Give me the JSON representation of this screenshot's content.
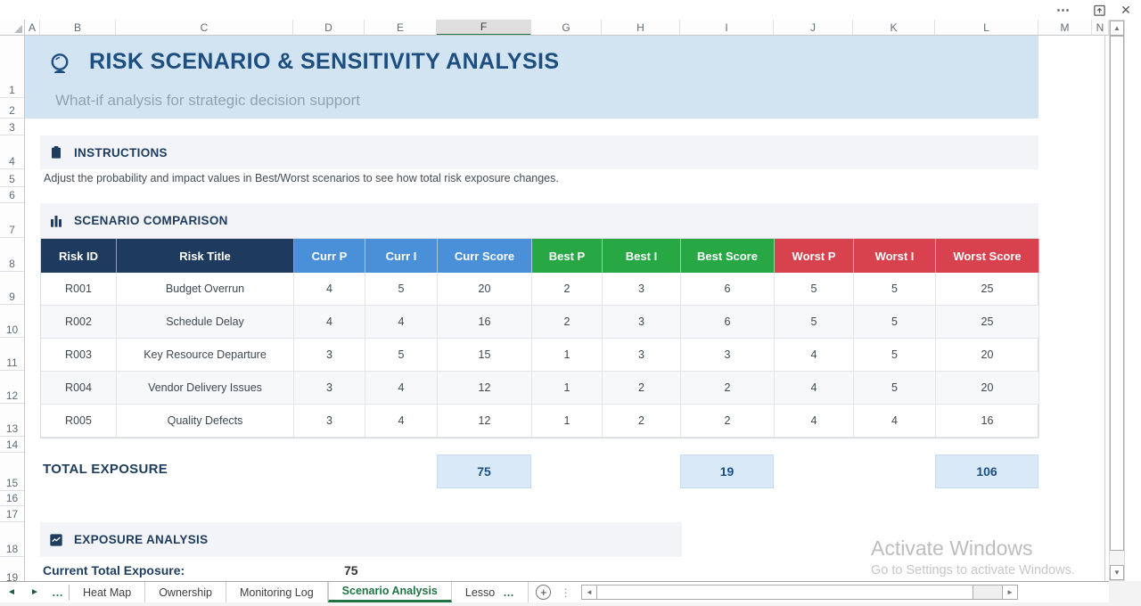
{
  "titlebar": {
    "more": "⋯",
    "close": "✕"
  },
  "grid": {
    "columns": [
      "A",
      "B",
      "C",
      "D",
      "E",
      "F",
      "G",
      "H",
      "I",
      "J",
      "K",
      "L",
      "M",
      "N"
    ],
    "selected_column": "F",
    "rows": [
      "1",
      "2",
      "3",
      "4",
      "5",
      "6",
      "7",
      "8",
      "9",
      "10",
      "11",
      "12",
      "13",
      "14",
      "15",
      "16",
      "17",
      "18",
      "19"
    ]
  },
  "banner": {
    "title": "RISK SCENARIO & SENSITIVITY ANALYSIS",
    "subtitle": "What-if analysis for strategic decision support"
  },
  "instructions": {
    "heading": "INSTRUCTIONS",
    "body": "Adjust the probability and impact values in Best/Worst scenarios to see how total risk exposure changes."
  },
  "comparison": {
    "heading": "SCENARIO COMPARISON",
    "headers": [
      "Risk ID",
      "Risk Title",
      "Curr P",
      "Curr I",
      "Curr Score",
      "Best P",
      "Best I",
      "Best Score",
      "Worst P",
      "Worst I",
      "Worst Score"
    ],
    "header_groups": [
      "dark",
      "dark",
      "curr",
      "curr",
      "curr",
      "best",
      "best",
      "best",
      "worst",
      "worst",
      "worst"
    ],
    "rows": [
      [
        "R001",
        "Budget Overrun",
        "4",
        "5",
        "20",
        "2",
        "3",
        "6",
        "5",
        "5",
        "25"
      ],
      [
        "R002",
        "Schedule Delay",
        "4",
        "4",
        "16",
        "2",
        "3",
        "6",
        "5",
        "5",
        "25"
      ],
      [
        "R003",
        "Key Resource Departure",
        "3",
        "5",
        "15",
        "1",
        "3",
        "3",
        "4",
        "5",
        "20"
      ],
      [
        "R004",
        "Vendor Delivery Issues",
        "3",
        "4",
        "12",
        "1",
        "2",
        "2",
        "4",
        "5",
        "20"
      ],
      [
        "R005",
        "Quality Defects",
        "3",
        "4",
        "12",
        "1",
        "2",
        "2",
        "4",
        "4",
        "16"
      ]
    ]
  },
  "totals": {
    "label": "TOTAL EXPOSURE",
    "current": "75",
    "best": "19",
    "worst": "106"
  },
  "exposure": {
    "heading": "EXPOSURE ANALYSIS",
    "row_label": "Current Total Exposure:",
    "row_value": "75"
  },
  "tabs": {
    "prev": "◄",
    "next": "►",
    "overflow_left": "…",
    "items": [
      {
        "label": "Heat Map",
        "active": false,
        "truncated": false
      },
      {
        "label": "Ownership",
        "active": false,
        "truncated": false
      },
      {
        "label": "Monitoring Log",
        "active": false,
        "truncated": false
      },
      {
        "label": "Scenario Analysis",
        "active": true,
        "truncated": false
      },
      {
        "label": "Lesso",
        "active": false,
        "truncated": true
      }
    ],
    "overflow_right": "…",
    "add": "+",
    "kebab": "⋮"
  },
  "scrollbar": {
    "up": "▲",
    "down": "▼",
    "left": "◄",
    "right": "►"
  },
  "watermark": {
    "line1": "Activate Windows",
    "line2": "Go to Settings to activate Windows."
  },
  "colors": {
    "accent_green": "#217346",
    "header_dark": "#1f3a5f",
    "header_curr": "#4a90d9",
    "header_best": "#28a745",
    "header_worst": "#d8414e",
    "banner_bg": "#d2e3f2",
    "total_box_bg": "#d9e9f8",
    "title_navy": "#1c4e80",
    "section_navy": "#1d3c5e"
  }
}
